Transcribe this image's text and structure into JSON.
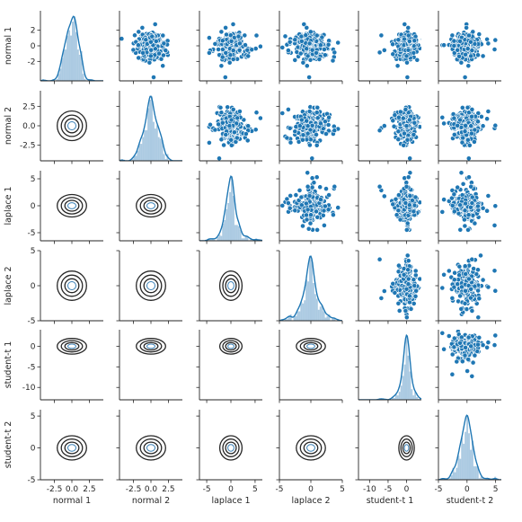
{
  "chart_data": {
    "type": "pairplot",
    "variables": [
      "normal 1",
      "normal 2",
      "laplace 1",
      "laplace 2",
      "student-t 1",
      "student-t 2"
    ],
    "upper": "scatter",
    "diagonal": "histogram-with-kde",
    "lower": "kde-contour",
    "grid": false,
    "color": "#1f77b4",
    "contour_color": "#262626",
    "axes": [
      {
        "label": "normal 1",
        "lim": [
          -4.5,
          4.5
        ],
        "x_ticks": [
          -2.5,
          0.0,
          2.5
        ],
        "x_tick_labels": [
          "-2.5",
          "0.0",
          "2.5"
        ],
        "y_ticks": [
          -2,
          0,
          2
        ],
        "y_tick_labels": [
          "-2",
          "0",
          "2"
        ],
        "spread": 1.0,
        "peak": 0.0
      },
      {
        "label": "normal 2",
        "lim": [
          -4.5,
          4.5
        ],
        "x_ticks": [
          -2.5,
          0.0,
          2.5
        ],
        "x_tick_labels": [
          "-2.5",
          "0.0",
          "2.5"
        ],
        "y_ticks": [
          -2.5,
          0.0,
          2.5
        ],
        "y_tick_labels": [
          "-2.5",
          "0.0",
          "2.5"
        ],
        "spread": 1.0,
        "peak": 0.0
      },
      {
        "label": "laplace 1",
        "lim": [
          -6.5,
          6.5
        ],
        "x_ticks": [
          -5,
          0,
          5
        ],
        "x_tick_labels": [
          "-5",
          "0",
          "5"
        ],
        "y_ticks": [
          -5,
          0,
          5
        ],
        "y_tick_labels": [
          "-5",
          "0",
          "5"
        ],
        "spread": 1.1,
        "peak": 0.0
      },
      {
        "label": "laplace 2",
        "lim": [
          -5,
          5
        ],
        "x_ticks": [
          -5,
          0,
          5
        ],
        "x_tick_labels": [
          "-5",
          "0",
          "5"
        ],
        "y_ticks": [
          -5,
          0,
          5
        ],
        "y_tick_labels": [
          "-5",
          "0",
          "5"
        ],
        "spread": 1.1,
        "peak": 0.0
      },
      {
        "label": "student-t 1",
        "lim": [
          -13,
          4
        ],
        "x_ticks": [
          -10,
          -5,
          0
        ],
        "x_tick_labels": [
          "-10",
          "-5",
          "0"
        ],
        "y_ticks": [
          -10,
          -5,
          0
        ],
        "y_tick_labels": [
          "-10",
          "-5",
          "0"
        ],
        "spread": 1.0,
        "peak": 0.0
      },
      {
        "label": "student-t 2",
        "lim": [
          -5,
          6
        ],
        "x_ticks": [
          -5,
          0,
          5
        ],
        "x_tick_labels": [
          "-5",
          "0",
          "5"
        ],
        "y_ticks": [
          -5,
          0,
          5
        ],
        "y_tick_labels": [
          "-5",
          "0",
          "5"
        ],
        "spread": 1.0,
        "peak": 0.0
      }
    ]
  }
}
